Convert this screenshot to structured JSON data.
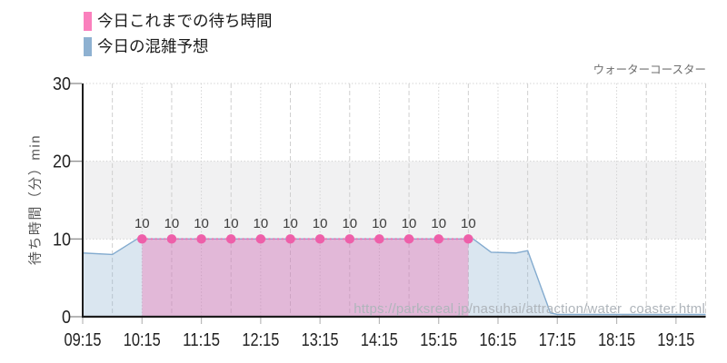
{
  "header": {
    "attraction_title": "ウォーターコースター"
  },
  "watermark": {
    "url_text": "https://parksreal.jp/nasuhai/attraction/water_coaster.html"
  },
  "colors": {
    "axis": "#1d1d1d",
    "grid": "#cfcfcf",
    "band": "#f1f1f2",
    "tick_label": "#222222",
    "x_tick_mark": "#b9b9b9",
    "y_tick_mark": "#8f8f8f",
    "value_label": "#3c3c3c",
    "title": "#6f6f6f",
    "ylabel": "#555555",
    "watermark": "#afb5bb"
  },
  "chart_data": {
    "type": "area",
    "title": "ウォーターコースター",
    "ylabel": "待ち時間（分）min",
    "ylim": [
      0,
      30
    ],
    "y_ticks": [
      0,
      10,
      20,
      30
    ],
    "x_domain": [
      "09:15",
      "19:45"
    ],
    "x_tick_labels": [
      "09:15",
      "10:15",
      "11:15",
      "12:15",
      "13:15",
      "14:15",
      "15:15",
      "16:15",
      "17:15",
      "18:15",
      "19:15"
    ],
    "gridline_interval_minutes": 30,
    "shaded_band_y": [
      10,
      20
    ],
    "legend_position": "top-left",
    "grid": true,
    "series": [
      {
        "name": "今日これまでの待ち時間",
        "type": "area",
        "legend_color": "#fa80bd",
        "line_color": "#f170b2",
        "fill_color": "rgba(240,110,176,0.38)",
        "line_style": "dotted",
        "show_points": true,
        "point_color": "#ee5fa9",
        "show_value_labels": true,
        "x": [
          "10:15",
          "10:45",
          "11:15",
          "11:45",
          "12:15",
          "12:45",
          "13:15",
          "13:45",
          "14:15",
          "14:45",
          "15:15",
          "15:45"
        ],
        "values": [
          10,
          10,
          10,
          10,
          10,
          10,
          10,
          10,
          10,
          10,
          10,
          10
        ]
      },
      {
        "name": "今日の混雑予想",
        "type": "area",
        "legend_color": "#8eb1d1",
        "line_color": "#83abcf",
        "fill_color": "rgba(141,177,209,0.32)",
        "line_style": "solid",
        "show_points": false,
        "show_value_labels": false,
        "x": [
          "09:15",
          "09:45",
          "10:10",
          "15:50",
          "16:08",
          "16:33",
          "16:45",
          "17:08",
          "17:15",
          "19:45"
        ],
        "values": [
          8.2,
          8,
          10,
          10,
          8.3,
          8.2,
          8.5,
          0.5,
          0.3,
          0.3
        ]
      }
    ]
  }
}
